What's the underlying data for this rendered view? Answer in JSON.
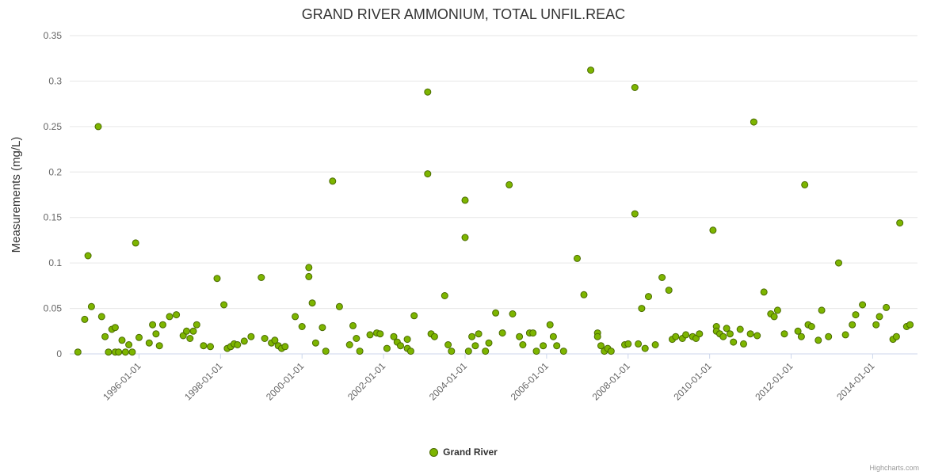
{
  "chart": {
    "title": "GRAND RIVER AMMONIUM, TOTAL UNFIL.REAC",
    "y_axis_title": "Measurements (mg/L)",
    "legend": {
      "label": "Grand River"
    },
    "credit": "Highcharts.com",
    "colors": {
      "marker_fill": "#7db500",
      "marker_stroke": "#4a6b00",
      "grid": "#e6e6e6",
      "axis_line": "#ccd6eb",
      "title_text": "#333333",
      "tick_text": "#666666",
      "legend_text": "#333333",
      "credit_text": "#999999"
    }
  },
  "chart_data": {
    "type": "scatter",
    "title": "GRAND RIVER AMMONIUM, TOTAL UNFIL.REAC",
    "xlabel": "",
    "ylabel": "Measurements (mg/L)",
    "ylim": [
      0,
      0.35
    ],
    "xlim_years": [
      1994.3,
      2015.1
    ],
    "y_ticks": [
      0,
      0.05,
      0.1,
      0.15,
      0.2,
      0.25,
      0.3,
      0.35
    ],
    "x_tick_labels": [
      "1996-01-01",
      "1998-01-01",
      "2000-01-01",
      "2002-01-01",
      "2004-01-01",
      "2006-01-01",
      "2008-01-01",
      "2010-01-01",
      "2012-01-01",
      "2014-01-01"
    ],
    "grid": "horizontal",
    "legend_position": "bottom-center",
    "series": [
      {
        "name": "Grand River",
        "points": [
          [
            "1994-07",
            0.002
          ],
          [
            "1994-09",
            0.038
          ],
          [
            "1994-10",
            0.108
          ],
          [
            "1994-11",
            0.052
          ],
          [
            "1995-01",
            0.25
          ],
          [
            "1995-02",
            0.041
          ],
          [
            "1995-03",
            0.019
          ],
          [
            "1995-04",
            0.002
          ],
          [
            "1995-05",
            0.027
          ],
          [
            "1995-06",
            0.002
          ],
          [
            "1995-06",
            0.029
          ],
          [
            "1995-07",
            0.002
          ],
          [
            "1995-08",
            0.015
          ],
          [
            "1995-09",
            0.002
          ],
          [
            "1995-10",
            0.01
          ],
          [
            "1995-11",
            0.002
          ],
          [
            "1995-12",
            0.122
          ],
          [
            "1996-01",
            0.018
          ],
          [
            "1996-04",
            0.012
          ],
          [
            "1996-05",
            0.032
          ],
          [
            "1996-06",
            0.022
          ],
          [
            "1996-07",
            0.009
          ],
          [
            "1996-08",
            0.032
          ],
          [
            "1996-10",
            0.041
          ],
          [
            "1996-12",
            0.043
          ],
          [
            "1997-02",
            0.02
          ],
          [
            "1997-03",
            0.025
          ],
          [
            "1997-04",
            0.017
          ],
          [
            "1997-05",
            0.025
          ],
          [
            "1997-06",
            0.032
          ],
          [
            "1997-08",
            0.009
          ],
          [
            "1997-10",
            0.008
          ],
          [
            "1997-12",
            0.083
          ],
          [
            "1998-02",
            0.054
          ],
          [
            "1998-03",
            0.006
          ],
          [
            "1998-04",
            0.008
          ],
          [
            "1998-05",
            0.011
          ],
          [
            "1998-06",
            0.01
          ],
          [
            "1998-08",
            0.014
          ],
          [
            "1998-10",
            0.019
          ],
          [
            "1999-01",
            0.084
          ],
          [
            "1999-02",
            0.017
          ],
          [
            "1999-04",
            0.012
          ],
          [
            "1999-05",
            0.015
          ],
          [
            "1999-06",
            0.009
          ],
          [
            "1999-07",
            0.006
          ],
          [
            "1999-08",
            0.008
          ],
          [
            "1999-11",
            0.041
          ],
          [
            "2000-01",
            0.03
          ],
          [
            "2000-03",
            0.085
          ],
          [
            "2000-03",
            0.095
          ],
          [
            "2000-04",
            0.056
          ],
          [
            "2000-05",
            0.012
          ],
          [
            "2000-07",
            0.029
          ],
          [
            "2000-08",
            0.003
          ],
          [
            "2000-10",
            0.19
          ],
          [
            "2000-12",
            0.052
          ],
          [
            "2001-03",
            0.01
          ],
          [
            "2001-04",
            0.031
          ],
          [
            "2001-05",
            0.017
          ],
          [
            "2001-06",
            0.003
          ],
          [
            "2001-09",
            0.021
          ],
          [
            "2001-11",
            0.023
          ],
          [
            "2001-12",
            0.022
          ],
          [
            "2002-02",
            0.006
          ],
          [
            "2002-04",
            0.019
          ],
          [
            "2002-05",
            0.013
          ],
          [
            "2002-06",
            0.009
          ],
          [
            "2002-08",
            0.016
          ],
          [
            "2002-08",
            0.006
          ],
          [
            "2002-09",
            0.003
          ],
          [
            "2002-10",
            0.042
          ],
          [
            "2003-02",
            0.288
          ],
          [
            "2003-02",
            0.198
          ],
          [
            "2003-03",
            0.022
          ],
          [
            "2003-04",
            0.019
          ],
          [
            "2003-07",
            0.064
          ],
          [
            "2003-08",
            0.01
          ],
          [
            "2003-09",
            0.003
          ],
          [
            "2004-01",
            0.128
          ],
          [
            "2004-01",
            0.169
          ],
          [
            "2004-02",
            0.003
          ],
          [
            "2004-03",
            0.019
          ],
          [
            "2004-04",
            0.009
          ],
          [
            "2004-05",
            0.022
          ],
          [
            "2004-07",
            0.003
          ],
          [
            "2004-08",
            0.012
          ],
          [
            "2004-10",
            0.045
          ],
          [
            "2004-12",
            0.023
          ],
          [
            "2005-02",
            0.186
          ],
          [
            "2005-03",
            0.044
          ],
          [
            "2005-05",
            0.019
          ],
          [
            "2005-06",
            0.01
          ],
          [
            "2005-08",
            0.023
          ],
          [
            "2005-09",
            0.023
          ],
          [
            "2005-10",
            0.003
          ],
          [
            "2005-12",
            0.009
          ],
          [
            "2006-02",
            0.032
          ],
          [
            "2006-03",
            0.019
          ],
          [
            "2006-04",
            0.009
          ],
          [
            "2006-06",
            0.003
          ],
          [
            "2006-10",
            0.105
          ],
          [
            "2006-12",
            0.065
          ],
          [
            "2007-02",
            0.312
          ],
          [
            "2007-04",
            0.023
          ],
          [
            "2007-04",
            0.019
          ],
          [
            "2007-05",
            0.009
          ],
          [
            "2007-06",
            0.003
          ],
          [
            "2007-07",
            0.006
          ],
          [
            "2007-08",
            0.003
          ],
          [
            "2007-12",
            0.01
          ],
          [
            "2008-01",
            0.011
          ],
          [
            "2008-03",
            0.293
          ],
          [
            "2008-03",
            0.154
          ],
          [
            "2008-04",
            0.011
          ],
          [
            "2008-05",
            0.05
          ],
          [
            "2008-06",
            0.006
          ],
          [
            "2008-07",
            0.063
          ],
          [
            "2008-09",
            0.01
          ],
          [
            "2008-11",
            0.084
          ],
          [
            "2009-01",
            0.07
          ],
          [
            "2009-02",
            0.016
          ],
          [
            "2009-03",
            0.019
          ],
          [
            "2009-05",
            0.017
          ],
          [
            "2009-06",
            0.021
          ],
          [
            "2009-08",
            0.019
          ],
          [
            "2009-09",
            0.017
          ],
          [
            "2009-10",
            0.022
          ],
          [
            "2010-02",
            0.136
          ],
          [
            "2010-03",
            0.03
          ],
          [
            "2010-03",
            0.025
          ],
          [
            "2010-04",
            0.022
          ],
          [
            "2010-05",
            0.019
          ],
          [
            "2010-06",
            0.028
          ],
          [
            "2010-07",
            0.022
          ],
          [
            "2010-08",
            0.013
          ],
          [
            "2010-10",
            0.027
          ],
          [
            "2010-11",
            0.011
          ],
          [
            "2011-01",
            0.022
          ],
          [
            "2011-02",
            0.255
          ],
          [
            "2011-03",
            0.02
          ],
          [
            "2011-05",
            0.068
          ],
          [
            "2011-07",
            0.044
          ],
          [
            "2011-08",
            0.041
          ],
          [
            "2011-09",
            0.048
          ],
          [
            "2011-11",
            0.022
          ],
          [
            "2012-03",
            0.025
          ],
          [
            "2012-04",
            0.019
          ],
          [
            "2012-05",
            0.186
          ],
          [
            "2012-06",
            0.032
          ],
          [
            "2012-07",
            0.03
          ],
          [
            "2012-09",
            0.015
          ],
          [
            "2012-10",
            0.048
          ],
          [
            "2012-12",
            0.019
          ],
          [
            "2013-03",
            0.1
          ],
          [
            "2013-05",
            0.021
          ],
          [
            "2013-07",
            0.032
          ],
          [
            "2013-08",
            0.043
          ],
          [
            "2013-10",
            0.054
          ],
          [
            "2014-02",
            0.032
          ],
          [
            "2014-03",
            0.041
          ],
          [
            "2014-05",
            0.051
          ],
          [
            "2014-07",
            0.016
          ],
          [
            "2014-08",
            0.019
          ],
          [
            "2014-09",
            0.144
          ],
          [
            "2014-11",
            0.03
          ],
          [
            "2014-12",
            0.032
          ]
        ]
      }
    ]
  }
}
